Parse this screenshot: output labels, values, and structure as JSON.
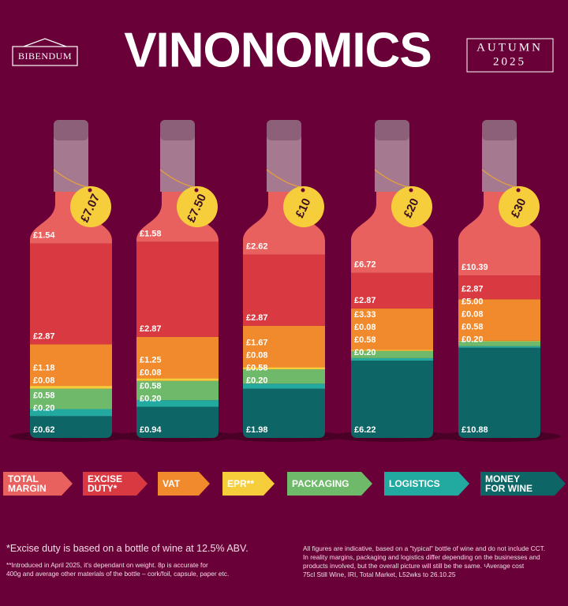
{
  "header": {
    "brand": "BIBENDUM",
    "title": "VINONOMICS",
    "season": [
      "AUTUMN",
      "2025"
    ]
  },
  "chart_data": {
    "type": "bottle-stack",
    "categories": [
      "£7.07",
      "£7.50",
      "£10",
      "£20",
      "£30"
    ],
    "series": [
      {
        "name": "MONEY FOR WINE",
        "color": "#0d6566",
        "values": [
          0.62,
          0.94,
          1.98,
          6.22,
          10.88
        ],
        "value_labels": [
          "£0.62",
          "£0.94",
          "£1.98",
          "£6.22",
          "£10.88"
        ]
      },
      {
        "name": "LOGISTICS",
        "color": "#22aaa0",
        "values": [
          0.2,
          0.2,
          0.2,
          0.2,
          0.2
        ],
        "value_labels": [
          "£0.20",
          "£0.20",
          "£0.20",
          "£0.20",
          "£0.20"
        ]
      },
      {
        "name": "PACKAGING",
        "color": "#6fba6a",
        "values": [
          0.58,
          0.58,
          0.58,
          0.58,
          0.58
        ],
        "value_labels": [
          "£0.58",
          "£0.58",
          "£0.58",
          "£0.58",
          "£0.58"
        ]
      },
      {
        "name": "EPR**",
        "color": "#f6cd3b",
        "values": [
          0.08,
          0.08,
          0.08,
          0.08,
          0.08
        ],
        "value_labels": [
          "£0.08",
          "£0.08",
          "£0.08",
          "£0.08",
          "£0.08"
        ]
      },
      {
        "name": "VAT",
        "color": "#f18a2c",
        "values": [
          1.18,
          1.25,
          1.67,
          3.33,
          5.0
        ],
        "value_labels": [
          "£1.18",
          "£1.25",
          "£1.67",
          "£3.33",
          "£5.00"
        ]
      },
      {
        "name": "EXCISE DUTY*",
        "color": "#d93a41",
        "values": [
          2.87,
          2.87,
          2.87,
          2.87,
          2.87
        ],
        "value_labels": [
          "£2.87",
          "£2.87",
          "£2.87",
          "£2.87",
          "£2.87"
        ]
      },
      {
        "name": "TOTAL MARGIN",
        "color": "#e9615f",
        "values": [
          1.54,
          1.58,
          2.62,
          6.72,
          10.39
        ],
        "value_labels": [
          "£1.54",
          "£1.58",
          "£2.62",
          "£6.72",
          "£10.39"
        ]
      }
    ]
  },
  "notes": {
    "excise": "*Excise duty is based on a bottle of wine at 12.5% ABV.",
    "epr": [
      "**Introduced in April 2025, it's dependant on weight. 8p is accurate for",
      "400g and average other materials of the bottle – cork/foil, capsule, paper etc."
    ],
    "disclaimer": [
      "All figures are indicative, based on a \"typical\" bottle of wine and do not include CCT.",
      "In reality margins, packaging and logistics differ depending on the businesses and",
      "products involved, but the overall picture will still be the same. ¹Average cost",
      "75cl Still Wine, IRI, Total Market, L52wks to 26.10.25"
    ]
  }
}
